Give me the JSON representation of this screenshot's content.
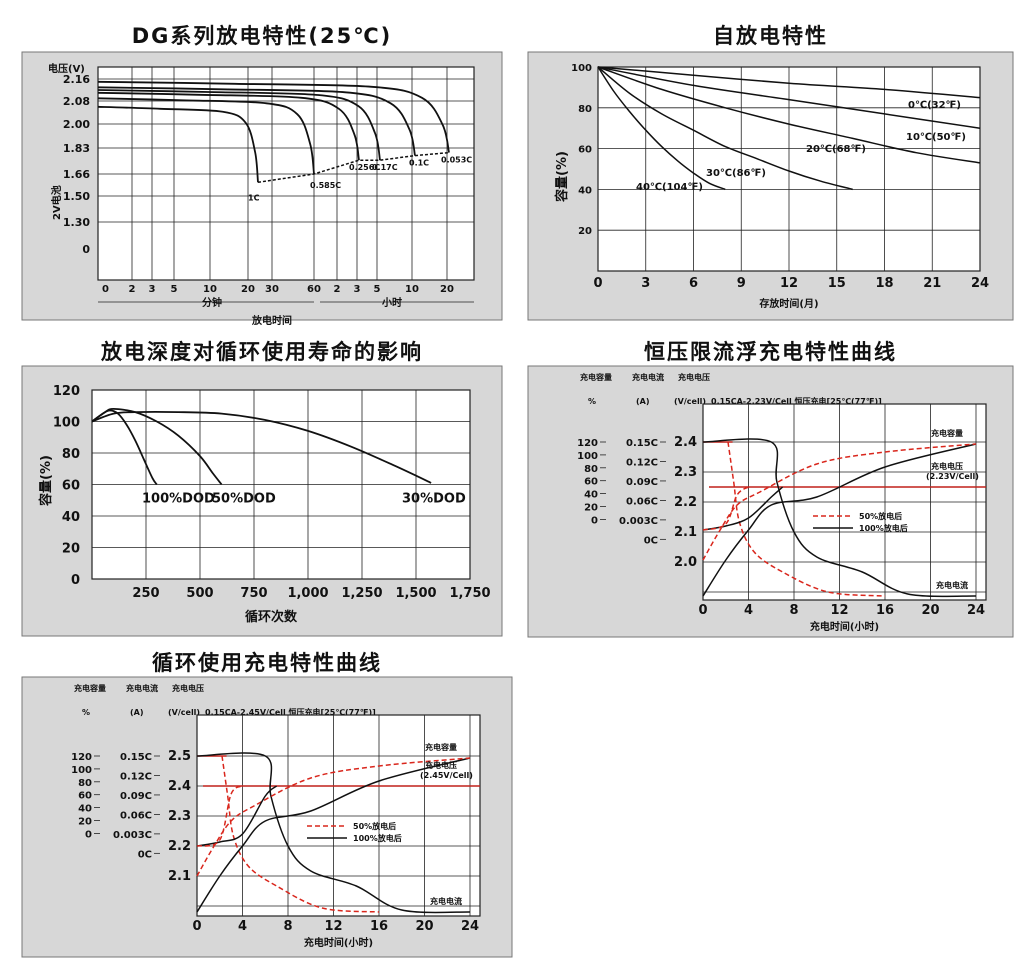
{
  "chart_data": [
    {
      "id": "discharge",
      "type": "line",
      "title": "DG系列放电特性(25℃)",
      "ylabel": "电压(V)",
      "ylabel2": "2V电池",
      "xlabel": "放电时间",
      "x_min_label": "分钟",
      "x_hour_label": "小时",
      "y_ticks": [
        "2.16",
        "2.08",
        "2.00",
        "1.83",
        "1.66",
        "1.50",
        "1.30",
        "0"
      ],
      "x_ticks_min": [
        "2",
        "3",
        "5",
        "10",
        "20",
        "30",
        "60"
      ],
      "x_ticks_hour": [
        "2",
        "3",
        "5",
        "10",
        "20"
      ],
      "series": [
        {
          "name": "1C",
          "end_v": 1.6,
          "end_x_min": 23
        },
        {
          "name": "0.585C",
          "end_v": 1.66,
          "end_x_min": 60
        },
        {
          "name": "0.256C",
          "end_v": 1.75,
          "end_x_hour": 3
        },
        {
          "name": "0.17C",
          "end_v": 1.75,
          "end_x_hour": 5
        },
        {
          "name": "0.1C",
          "end_v": 1.78,
          "end_x_hour": 10
        },
        {
          "name": "0.053C",
          "end_v": 1.8,
          "end_x_hour": 20
        }
      ],
      "series_labels": [
        "1C",
        "0.585C",
        "0.256C",
        "0.17C",
        "0.1C",
        "0.053C"
      ]
    },
    {
      "id": "selfdischarge",
      "type": "line",
      "title": "自放电特性",
      "ylabel": "容量(%)",
      "xlabel": "存放时间(月)",
      "xlim": [
        0,
        24
      ],
      "ylim": [
        0,
        100
      ],
      "x_ticks": [
        "0",
        "3",
        "6",
        "9",
        "12",
        "15",
        "18",
        "21",
        "24"
      ],
      "y_ticks": [
        "100",
        "80",
        "60",
        "40",
        "20"
      ],
      "series": [
        {
          "name": "0℃(32℉)",
          "x": [
            0,
            6,
            12,
            18,
            24
          ],
          "y": [
            100,
            96,
            92,
            89,
            85
          ]
        },
        {
          "name": "10℃(50℉)",
          "x": [
            0,
            6,
            12,
            18,
            24
          ],
          "y": [
            100,
            91,
            84,
            77,
            70
          ]
        },
        {
          "name": "20℃(68℉)",
          "x": [
            0,
            4,
            8,
            12,
            16,
            20,
            24
          ],
          "y": [
            100,
            89,
            80,
            72,
            65,
            58,
            53
          ]
        },
        {
          "name": "30℃(86℉)",
          "x": [
            0,
            2,
            4,
            6,
            8,
            10,
            12,
            14,
            16
          ],
          "y": [
            100,
            87,
            77,
            69,
            61,
            55,
            49,
            44,
            40
          ]
        },
        {
          "name": "40℃(104℉)",
          "x": [
            0,
            1,
            2,
            3,
            4,
            5,
            6,
            7,
            8
          ],
          "y": [
            100,
            88,
            78,
            69,
            61,
            54,
            48,
            43,
            40
          ]
        }
      ]
    },
    {
      "id": "dod",
      "type": "line",
      "title": "放电深度对循环使用寿命的影响",
      "ylabel": "容量(%)",
      "xlabel": "循环次数",
      "xlim": [
        0,
        1750
      ],
      "ylim": [
        0,
        120
      ],
      "x_ticks": [
        "250",
        "500",
        "750",
        "1,000",
        "1,250",
        "1,500",
        "1,750"
      ],
      "y_ticks": [
        "120",
        "100",
        "80",
        "60",
        "40",
        "20",
        "0"
      ],
      "series": [
        {
          "name": "100%DOD",
          "x": [
            0,
            40,
            80,
            120,
            160,
            200,
            240,
            280,
            300
          ],
          "y": [
            100,
            104,
            107,
            105,
            98,
            88,
            76,
            64,
            60
          ]
        },
        {
          "name": "50%DOD",
          "x": [
            0,
            60,
            100,
            200,
            300,
            400,
            500,
            560,
            600
          ],
          "y": [
            100,
            106,
            108,
            106,
            100,
            91,
            78,
            67,
            60
          ]
        },
        {
          "name": "30%DOD",
          "x": [
            0,
            100,
            200,
            400,
            600,
            800,
            1000,
            1200,
            1400,
            1570
          ],
          "y": [
            100,
            105,
            106,
            106,
            105,
            101,
            94,
            84,
            72,
            61
          ]
        }
      ]
    },
    {
      "id": "floatcharge",
      "type": "line",
      "title": "恒压限流浮充电特性曲线",
      "header_cap": "充电容量",
      "header_cur": "充电电流",
      "header_volt": "充电电压",
      "unit_cap": "%",
      "unit_cur": "(A)",
      "unit_volt": "(V/cell)",
      "condition": "0.15CA-2.23V/Cell 恒压充电[25℃(77℉)]",
      "xlabel": "充电时间(小时)",
      "xlim": [
        0,
        24
      ],
      "x_ticks": [
        "0",
        "4",
        "8",
        "12",
        "16",
        "20",
        "24"
      ],
      "cap_ticks": [
        "120",
        "100",
        "80",
        "60",
        "40",
        "20",
        "0"
      ],
      "cur_ticks": [
        "0.15C",
        "0.12C",
        "0.09C",
        "0.06C",
        "0.003C",
        "0C"
      ],
      "volt_ticks": [
        "2.4",
        "2.3",
        "2.2",
        "2.1",
        "2.0"
      ],
      "labels": {
        "capacity": "充电容量",
        "voltage": "充电电压",
        "voltage_val": "(2.23V/Cell)",
        "current": "充电电流"
      },
      "legend": [
        "50%放电后",
        "100%放电后"
      ]
    },
    {
      "id": "cyclecharge",
      "type": "line",
      "title": "循环使用充电特性曲线",
      "header_cap": "充电容量",
      "header_cur": "充电电流",
      "header_volt": "充电电压",
      "unit_cap": "%",
      "unit_cur": "(A)",
      "unit_volt": "(V/cell)",
      "condition": "0.15CA-2.45V/Cell 恒压充电[25℃(77℉)]",
      "xlabel": "充电时间(小时)",
      "xlim": [
        0,
        24
      ],
      "x_ticks": [
        "0",
        "4",
        "8",
        "12",
        "16",
        "20",
        "24"
      ],
      "cap_ticks": [
        "120",
        "100",
        "80",
        "60",
        "40",
        "20",
        "0"
      ],
      "cur_ticks": [
        "0.15C",
        "0.12C",
        "0.09C",
        "0.06C",
        "0.003C",
        "0C"
      ],
      "volt_ticks": [
        "2.5",
        "2.4",
        "2.3",
        "2.2",
        "2.1"
      ],
      "labels": {
        "capacity": "充电容量",
        "voltage": "充电电压",
        "voltage_val": "(2.45V/Cell)",
        "current": "充电电流"
      },
      "legend": [
        "50%放电后",
        "100%放电后"
      ]
    }
  ]
}
